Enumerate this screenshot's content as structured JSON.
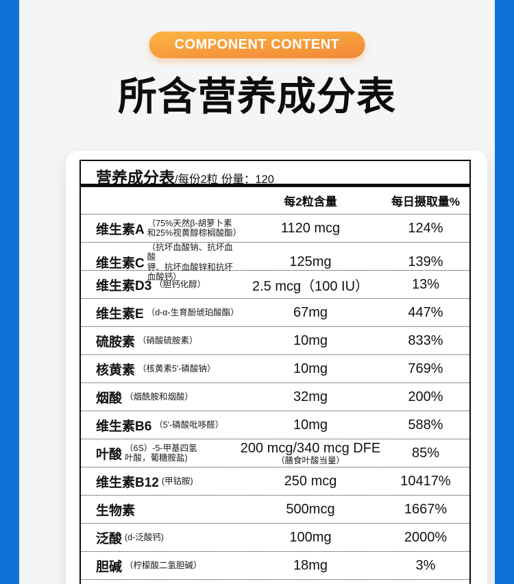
{
  "header": {
    "badge": "COMPONENT CONTENT",
    "title": "所含营养成分表"
  },
  "table": {
    "title": "营养成分表",
    "subtitle": "/每份2粒  份量：120",
    "columns": {
      "amount": "每2粒含量",
      "daily": "每日摄取量%"
    },
    "rows": [
      {
        "name": "维生素A",
        "note": "（75%天然β-胡萝卜素\n和25%视黄醇棕榈酸酯）",
        "amount": "1120 mcg",
        "amount_sub": "",
        "daily": "124%"
      },
      {
        "name": "维生素C",
        "note": "（抗坏血酸钠、抗坏血酸\n钾、抗坏血酸锌和抗坏血酸钙）",
        "amount": "125mg",
        "amount_sub": "",
        "daily": "139%"
      },
      {
        "name": "维生素D3",
        "note": "（胆钙化醇）",
        "amount": "2.5 mcg（100 IU）",
        "amount_sub": "",
        "daily": "13%"
      },
      {
        "name": "维生素E",
        "note": "（d-α-生育酚琥珀酸酯）",
        "amount": "67mg",
        "amount_sub": "",
        "daily": "447%"
      },
      {
        "name": "硫胺素",
        "note": "（硝酸硫胺素）",
        "amount": "10mg",
        "amount_sub": "",
        "daily": "833%"
      },
      {
        "name": "核黄素",
        "note": "（核黄素5'-磷酸钠）",
        "amount": "10mg",
        "amount_sub": "",
        "daily": "769%"
      },
      {
        "name": "烟酸",
        "note": "（烟酰胺和烟酸）",
        "amount": "32mg",
        "amount_sub": "",
        "daily": "200%"
      },
      {
        "name": "维生素B6",
        "note": "（5'-磷酸吡哆醛）",
        "amount": "10mg",
        "amount_sub": "",
        "daily": "588%"
      },
      {
        "name": "叶酸",
        "note": "（6S）-5-甲基四氢\n叶酸，葡糖胺盐)",
        "amount": "200 mcg/340 mcg DFE",
        "amount_sub": "（膳食叶酸当量）",
        "daily": "85%"
      },
      {
        "name": "维生素B12",
        "note": "(甲钴胺)",
        "amount": "250 mcg",
        "amount_sub": "",
        "daily": "10417%"
      },
      {
        "name": "生物素",
        "note": "",
        "amount": "500mcg",
        "amount_sub": "",
        "daily": "1667%"
      },
      {
        "name": "泛酸",
        "note": "(d-泛酸钙)",
        "amount": "100mg",
        "amount_sub": "",
        "daily": "2000%"
      },
      {
        "name": "胆碱",
        "note": "（柠檬酸二氢胆碱）",
        "amount": "18mg",
        "amount_sub": "",
        "daily": "3%"
      }
    ]
  },
  "colors": {
    "background_blue": "#0e73d8",
    "panel_gray": "#f4f5f6",
    "badge_orange_light": "#fbb041",
    "badge_orange_dark": "#f28a38",
    "ink": "#0d0d0d"
  }
}
